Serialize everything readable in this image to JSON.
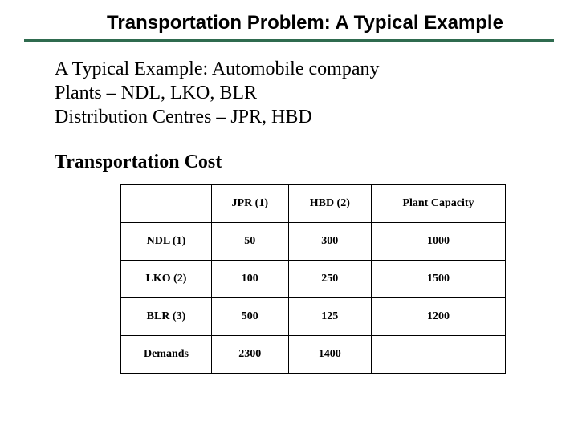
{
  "title": "Transportation Problem: A Typical Example",
  "intro": {
    "line1": "A Typical Example:  Automobile company",
    "line2": "Plants – NDL, LKO, BLR",
    "line3": "Distribution Centres – JPR, HBD"
  },
  "section_heading": "Transportation Cost",
  "table": {
    "columns": [
      "",
      "JPR (1)",
      "HBD (2)",
      "Plant Capacity"
    ],
    "rows": [
      [
        "NDL (1)",
        "50",
        "300",
        "1000"
      ],
      [
        "LKO (2)",
        "100",
        "250",
        "1500"
      ],
      [
        "BLR (3)",
        "500",
        "125",
        "1200"
      ],
      [
        "Demands",
        "2300",
        "1400",
        ""
      ]
    ],
    "border_color": "#000000",
    "header_fontsize": 14,
    "cell_fontsize": 14
  },
  "colors": {
    "rule": "#2f6b4f",
    "background": "#ffffff",
    "text": "#000000"
  }
}
